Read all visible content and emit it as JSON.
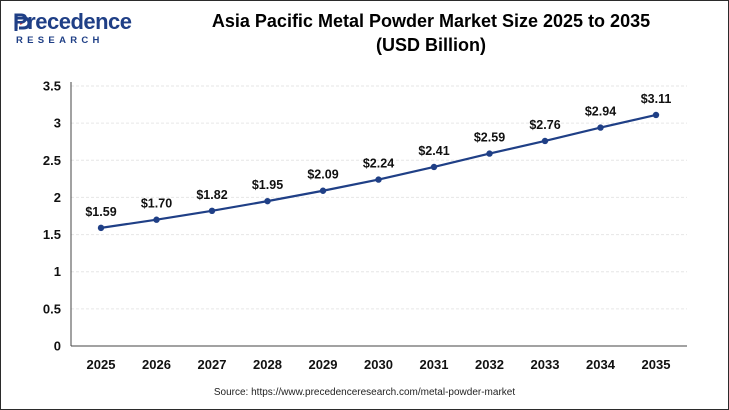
{
  "brand": {
    "name": "Precedence",
    "sub": "RESEARCH"
  },
  "colors": {
    "line": "#1f3f86",
    "grid": "#e6e6e6",
    "axis": "#444444"
  },
  "source": "Source: https://www.precedenceresearch.com/metal-powder-market",
  "chart_data": {
    "type": "line",
    "title": "Asia Pacific Metal Powder Market Size 2025 to 2035",
    "subtitle": "(USD Billion)",
    "xlabel": "",
    "ylabel": "",
    "x": [
      "2025",
      "2026",
      "2027",
      "2028",
      "2029",
      "2030",
      "2031",
      "2032",
      "2033",
      "2034",
      "2035"
    ],
    "series": [
      {
        "name": "Market Size (USD Billion)",
        "values": [
          1.59,
          1.7,
          1.82,
          1.95,
          2.09,
          2.24,
          2.41,
          2.59,
          2.76,
          2.94,
          3.11
        ],
        "labels": [
          "$1.59",
          "$1.70",
          "$1.82",
          "$1.95",
          "$2.09",
          "$2.24",
          "$2.41",
          "$2.59",
          "$2.76",
          "$2.94",
          "$3.11"
        ]
      }
    ],
    "yticks": [
      "0",
      "0.5",
      "1",
      "1.5",
      "2",
      "2.5",
      "3",
      "3.5"
    ],
    "ylim": [
      0,
      3.5
    ],
    "grid": true
  }
}
